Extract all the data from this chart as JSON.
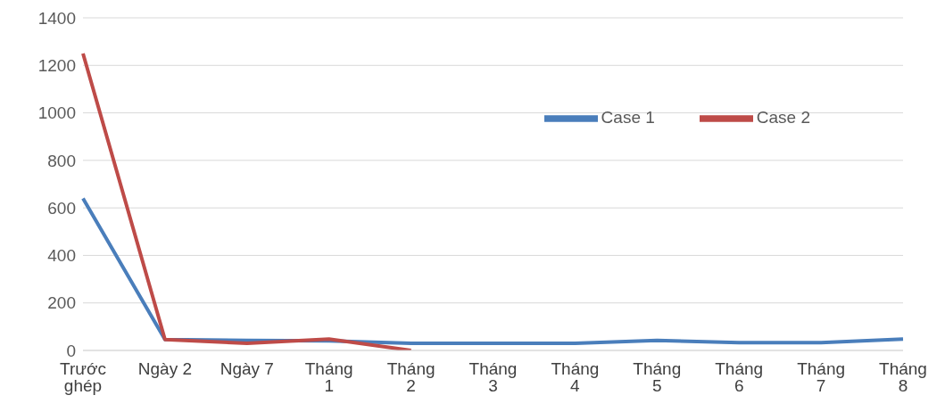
{
  "chart_data": {
    "type": "line",
    "categories": [
      "Trước ghép",
      "Ngày 2",
      "Ngày 7",
      "Tháng 1",
      "Tháng 2",
      "Tháng 3",
      "Tháng 4",
      "Tháng 5",
      "Tháng 6",
      "Tháng 7",
      "Tháng 8"
    ],
    "series": [
      {
        "name": "Case 1",
        "color": "#4a7ebb",
        "values": [
          640,
          46,
          42,
          40,
          30,
          30,
          30,
          42,
          33,
          33,
          48
        ]
      },
      {
        "name": "Case 2",
        "color": "#be4b48",
        "values": [
          1250,
          46,
          30,
          48,
          0,
          null,
          null,
          null,
          null,
          null,
          null
        ]
      }
    ],
    "ylim": [
      0,
      1400
    ],
    "yticks": [
      0,
      200,
      400,
      600,
      800,
      1000,
      1200,
      1400
    ],
    "grid": "y",
    "legend": "top right",
    "marker": "none",
    "line_style": "solid"
  }
}
